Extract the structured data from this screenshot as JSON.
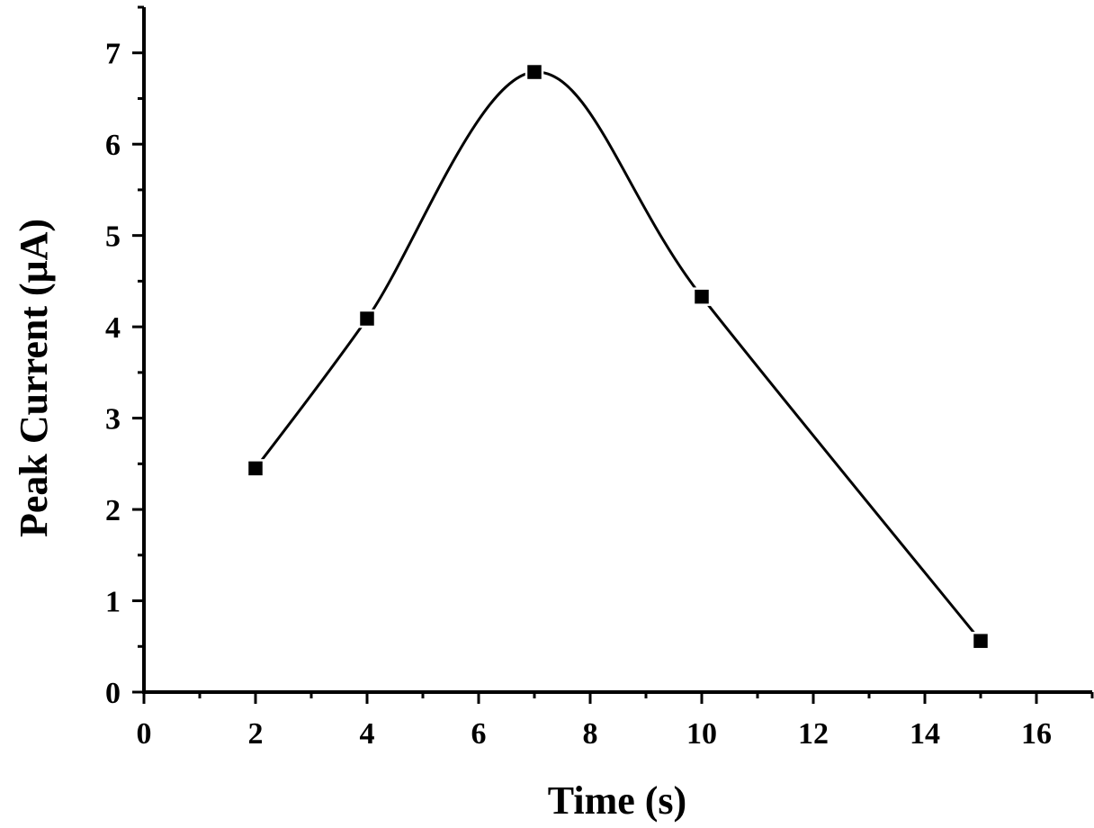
{
  "chart_data": {
    "type": "line",
    "xlabel": "Time (s)",
    "ylabel": "Peak Current (μA)",
    "xlim": [
      0,
      17
    ],
    "ylim": [
      0,
      7.5
    ],
    "xticks": [
      0,
      2,
      4,
      6,
      8,
      10,
      12,
      14,
      16
    ],
    "yticks": [
      0,
      1,
      2,
      3,
      4,
      5,
      6,
      7
    ],
    "grid": false,
    "smoothed_line": true,
    "series": [
      {
        "x": [
          2,
          4,
          7,
          10,
          15
        ],
        "y": [
          2.45,
          4.09,
          6.79,
          4.33,
          0.56
        ],
        "marker": "square",
        "color": "#000000"
      }
    ]
  }
}
